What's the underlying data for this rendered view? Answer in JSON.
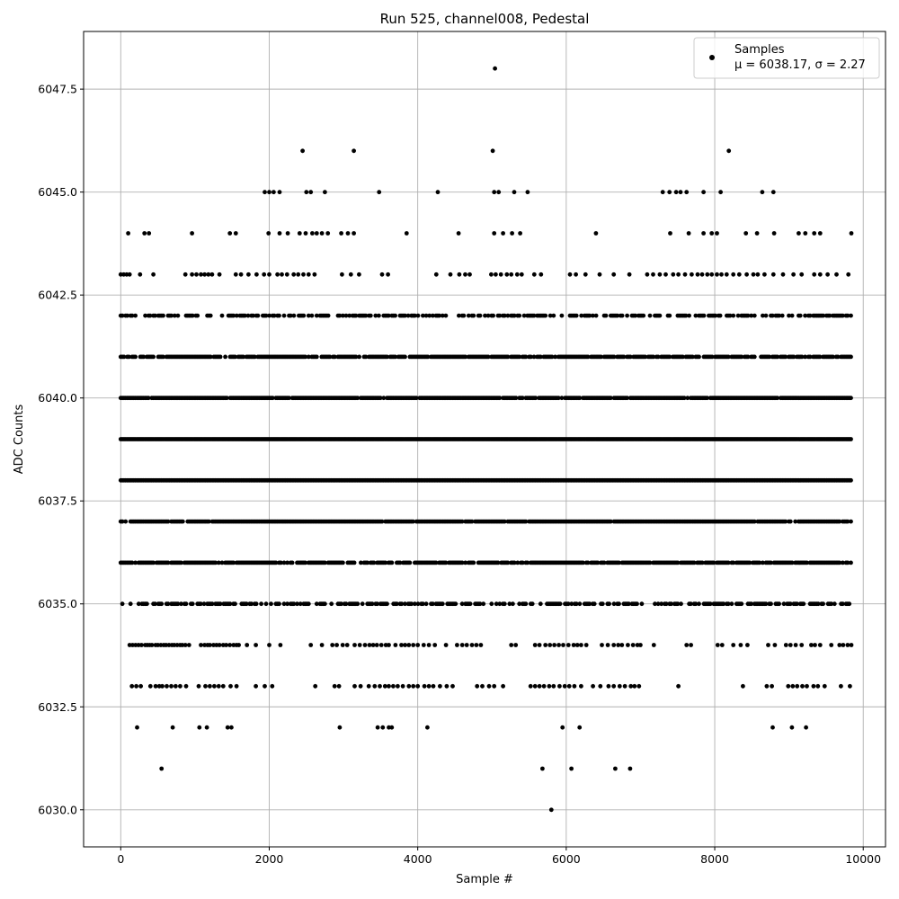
{
  "chart_data": {
    "type": "scatter",
    "title": "Run 525, channel008, Pedestal",
    "xlabel": "Sample #",
    "ylabel": "ADC Counts",
    "xlim": [
      -500,
      10300
    ],
    "ylim": [
      6029.1,
      6048.9
    ],
    "x_ticks": [
      0,
      2000,
      4000,
      6000,
      8000,
      10000
    ],
    "x_tick_labels": [
      "0",
      "2000",
      "4000",
      "6000",
      "8000",
      "10000"
    ],
    "y_ticks": [
      6030.0,
      6032.5,
      6035.0,
      6037.5,
      6040.0,
      6042.5,
      6045.0,
      6047.5
    ],
    "y_tick_labels": [
      "6030.0",
      "6032.5",
      "6035.0",
      "6037.5",
      "6040.0",
      "6042.5",
      "6045.0",
      "6047.5"
    ],
    "grid": true,
    "legend_position": "top-right",
    "series": [
      {
        "name": "Samples",
        "annotation": "μ = 6038.17, σ = 2.27",
        "color": "#000000",
        "n_samples": 9850,
        "x_range": [
          0,
          9850
        ],
        "dense_levels": [
          {
            "y": 6035,
            "fraction": 0.6
          },
          {
            "y": 6036,
            "fraction": 0.85
          },
          {
            "y": 6037,
            "fraction": 0.95
          },
          {
            "y": 6038,
            "fraction": 1.0
          },
          {
            "y": 6039,
            "fraction": 1.0
          },
          {
            "y": 6040,
            "fraction": 0.95
          },
          {
            "y": 6041,
            "fraction": 0.85
          },
          {
            "y": 6042,
            "fraction": 0.6
          }
        ],
        "sparse_levels": {
          "6034": [
            120,
            160,
            200,
            240,
            280,
            330,
            360,
            390,
            420,
            470,
            500,
            540,
            580,
            610,
            650,
            690,
            720,
            760,
            800,
            830,
            870,
            920,
            1080,
            1130,
            1170,
            1200,
            1250,
            1290,
            1330,
            1380,
            1420,
            1470,
            1520,
            1560,
            1590,
            1700,
            1820,
            2000,
            2150,
            2560,
            2710,
            2850,
            2910,
            2990,
            3050,
            3150,
            3220,
            3290,
            3350,
            3400,
            3450,
            3510,
            3570,
            3610,
            3700,
            3780,
            3830,
            3880,
            3940,
            4000,
            4080,
            4150,
            4230,
            4380,
            4530,
            4600,
            4660,
            4730,
            4790,
            4850,
            5260,
            5320,
            5580,
            5640,
            5720,
            5780,
            5840,
            5900,
            5960,
            6030,
            6100,
            6150,
            6200,
            6270,
            6480,
            6560,
            6640,
            6700,
            6750,
            6830,
            6900,
            6960,
            7000,
            7180,
            7620,
            7680,
            8040,
            8100,
            8250,
            8350,
            8440,
            8720,
            8810,
            8960,
            9020,
            9090,
            9170,
            9300,
            9350,
            9420,
            9570,
            9680,
            9730,
            9790,
            9840
          ],
          "6033": [
            150,
            210,
            270,
            400,
            470,
            520,
            560,
            620,
            680,
            740,
            800,
            880,
            1050,
            1140,
            1200,
            1260,
            1320,
            1380,
            1480,
            1560,
            1820,
            1940,
            2040,
            2620,
            2880,
            2940,
            3150,
            3230,
            3340,
            3420,
            3490,
            3560,
            3610,
            3670,
            3730,
            3800,
            3880,
            3940,
            4000,
            4090,
            4150,
            4210,
            4300,
            4390,
            4470,
            4800,
            4870,
            4960,
            5030,
            5150,
            5520,
            5580,
            5640,
            5700,
            5770,
            5830,
            5910,
            5980,
            6040,
            6110,
            6200,
            6360,
            6460,
            6570,
            6640,
            6720,
            6790,
            6870,
            6920,
            6980,
            7510,
            8380,
            8700,
            8770,
            8990,
            9050,
            9110,
            9180,
            9240,
            9330,
            9390,
            9480,
            9700,
            9820
          ],
          "6032": [
            220,
            700,
            1060,
            1160,
            1440,
            1490,
            2950,
            3460,
            3530,
            3610,
            3650,
            4130,
            5950,
            6180,
            8780,
            9040,
            9230
          ],
          "6031": [
            550,
            5680,
            6070,
            6660,
            6860
          ],
          "6030": [
            5800
          ],
          "6043": [
            0,
            40,
            80,
            120,
            260,
            440,
            870,
            960,
            1020,
            1080,
            1130,
            1180,
            1230,
            1330,
            1550,
            1620,
            1720,
            1830,
            1930,
            2000,
            2110,
            2170,
            2240,
            2330,
            2390,
            2460,
            2530,
            2610,
            2980,
            3100,
            3210,
            3520,
            3600,
            4250,
            4440,
            4560,
            4640,
            4700,
            4990,
            5050,
            5120,
            5200,
            5260,
            5340,
            5400,
            5570,
            5660,
            6050,
            6130,
            6260,
            6450,
            6640,
            6850,
            7090,
            7170,
            7260,
            7340,
            7440,
            7510,
            7600,
            7690,
            7770,
            7830,
            7900,
            7960,
            8030,
            8090,
            8160,
            8250,
            8330,
            8430,
            8520,
            8580,
            8670,
            8790,
            8920,
            9060,
            9170,
            9340,
            9420,
            9520,
            9640,
            9800
          ],
          "6044": [
            100,
            320,
            380,
            960,
            1470,
            1550,
            1990,
            2140,
            2250,
            2410,
            2490,
            2580,
            2640,
            2710,
            2790,
            2970,
            3060,
            3140,
            3850,
            4550,
            5030,
            5150,
            5270,
            5380,
            6400,
            7400,
            7650,
            7850,
            7960,
            8030,
            8420,
            8570,
            8800,
            9130,
            9220,
            9340,
            9420,
            9840
          ],
          "6045": [
            1940,
            2000,
            2060,
            2140,
            2500,
            2560,
            2750,
            3480,
            4270,
            5030,
            5090,
            5300,
            5480,
            7300,
            7390,
            7480,
            7540,
            7620,
            7850,
            8080,
            8640,
            8790
          ],
          "6046": [
            2450,
            3140,
            5010,
            8190
          ],
          "6048": [
            5040
          ]
        }
      }
    ]
  }
}
